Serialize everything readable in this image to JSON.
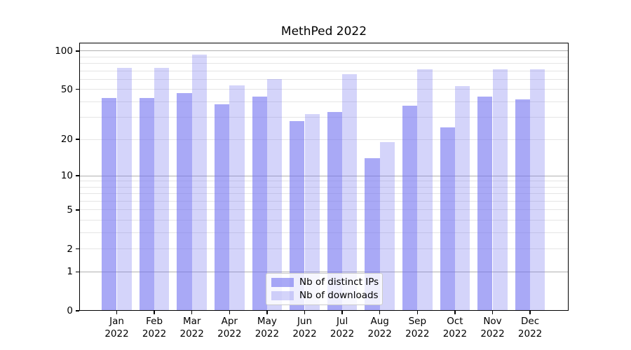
{
  "title": "MethPed 2022",
  "chart_data": {
    "type": "bar",
    "title": "MethPed 2022",
    "categories": [
      "Jan 2022",
      "Feb 2022",
      "Mar 2022",
      "Apr 2022",
      "May 2022",
      "Jun 2022",
      "Jul 2022",
      "Aug 2022",
      "Sep 2022",
      "Oct 2022",
      "Nov 2022",
      "Dec 2022"
    ],
    "series": [
      {
        "name": "Nb of distinct IPs",
        "color": "rgba(112,112,240,0.6)",
        "values": [
          43,
          43,
          47,
          38,
          44,
          28,
          33,
          14,
          37,
          25,
          44,
          42
        ]
      },
      {
        "name": "Nb of downloads",
        "color": "rgba(112,112,240,0.3)",
        "values": [
          74,
          74,
          94,
          54,
          60,
          32,
          66,
          19,
          72,
          53,
          72,
          72
        ]
      }
    ],
    "xlabel": "",
    "ylabel": "",
    "y_axis": {
      "scale": "log1p",
      "min": 0,
      "max": 116,
      "tick_values": [
        0,
        1,
        2,
        5,
        10,
        20,
        50,
        100
      ],
      "major_gridlines": [
        1,
        10,
        100
      ],
      "minor_gridlines": [
        2,
        3,
        4,
        5,
        6,
        7,
        8,
        9,
        20,
        30,
        40,
        50,
        60,
        70,
        80,
        90
      ]
    },
    "grid": true,
    "legend_position": "lower center"
  },
  "colors": {
    "bar_dark": "rgba(112,112,240,0.6)",
    "bar_light": "rgba(112,112,240,0.3)",
    "major_gridline": "#b0b0b0",
    "minor_gridline": "#e5e5e5",
    "axis": "#000000",
    "legend_border": "#cccccc",
    "legend_background": "rgba(255,255,255,0.8)"
  }
}
